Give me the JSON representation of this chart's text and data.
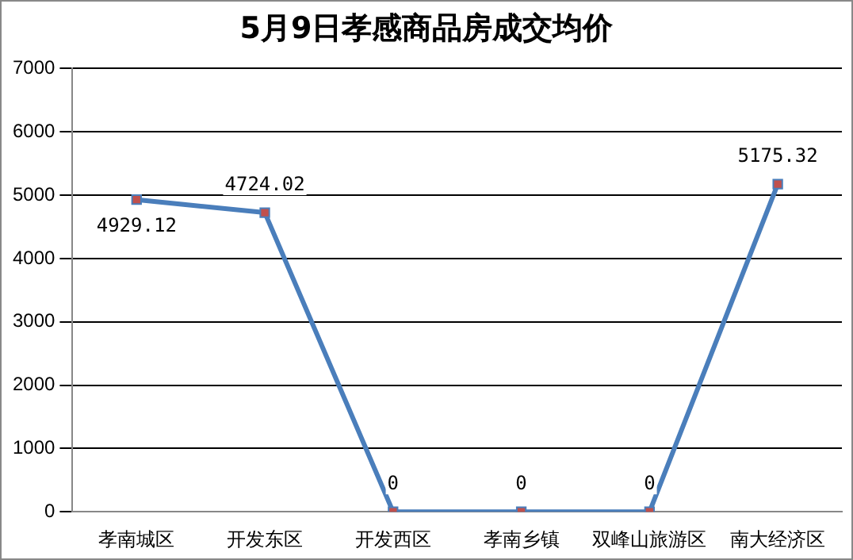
{
  "chart_data": {
    "type": "line",
    "title": "5月9日孝感商品房成交均价",
    "categories": [
      "孝南城区",
      "开发东区",
      "开发西区",
      "孝南乡镇",
      "双峰山旅游区",
      "南大经济区"
    ],
    "series": [
      {
        "color": "#4a7ebb",
        "values": [
          4929.12,
          4724.02,
          0,
          0,
          0,
          5175.32
        ]
      }
    ],
    "ylim": [
      0,
      7000
    ],
    "yticks": [
      0,
      1000,
      2000,
      3000,
      4000,
      5000,
      6000,
      7000
    ],
    "grid": "y",
    "legend": false,
    "marker": "square",
    "line_style": "solid",
    "data_labels": true
  }
}
